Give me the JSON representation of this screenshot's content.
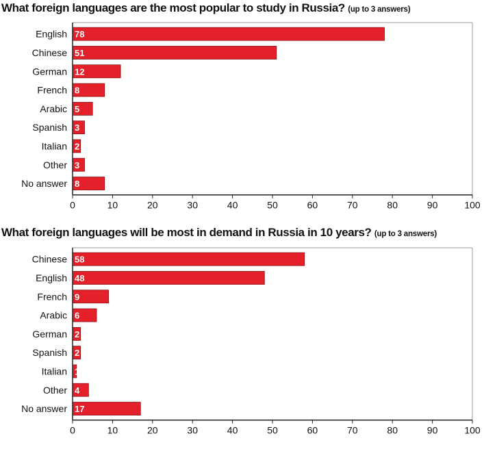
{
  "colors": {
    "bar": "#e4202a",
    "bar_edge": "#8e1016",
    "axis": "#222222",
    "grid": "#9a9a9a"
  },
  "chart_data": [
    {
      "type": "bar",
      "orientation": "horizontal",
      "title": "What foreign languages are the most popular to study in Russia?",
      "title_note": "(up to 3 answers)",
      "categories": [
        "English",
        "Chinese",
        "German",
        "French",
        "Arabic",
        "Spanish",
        "Italian",
        "Other",
        "No answer"
      ],
      "values": [
        78,
        51,
        12,
        8,
        5,
        3,
        2,
        3,
        8
      ],
      "xlim": [
        0,
        100
      ],
      "xticks": [
        0,
        10,
        20,
        30,
        40,
        50,
        60,
        70,
        80,
        90,
        100
      ],
      "xlabel": "",
      "ylabel": "",
      "grid": false,
      "data_labels": true
    },
    {
      "type": "bar",
      "orientation": "horizontal",
      "title": "What foreign languages will be most in demand in Russia in 10 years?",
      "title_note": "(up to 3 answers)",
      "categories": [
        "Chinese",
        "English",
        "French",
        "Arabic",
        "German",
        "Spanish",
        "Italian",
        "Other",
        "No answer"
      ],
      "values": [
        58,
        48,
        9,
        6,
        2,
        2,
        1,
        4,
        17
      ],
      "xlim": [
        0,
        100
      ],
      "xticks": [
        0,
        10,
        20,
        30,
        40,
        50,
        60,
        70,
        80,
        90,
        100
      ],
      "xlabel": "",
      "ylabel": "",
      "grid": false,
      "data_labels": true
    }
  ]
}
